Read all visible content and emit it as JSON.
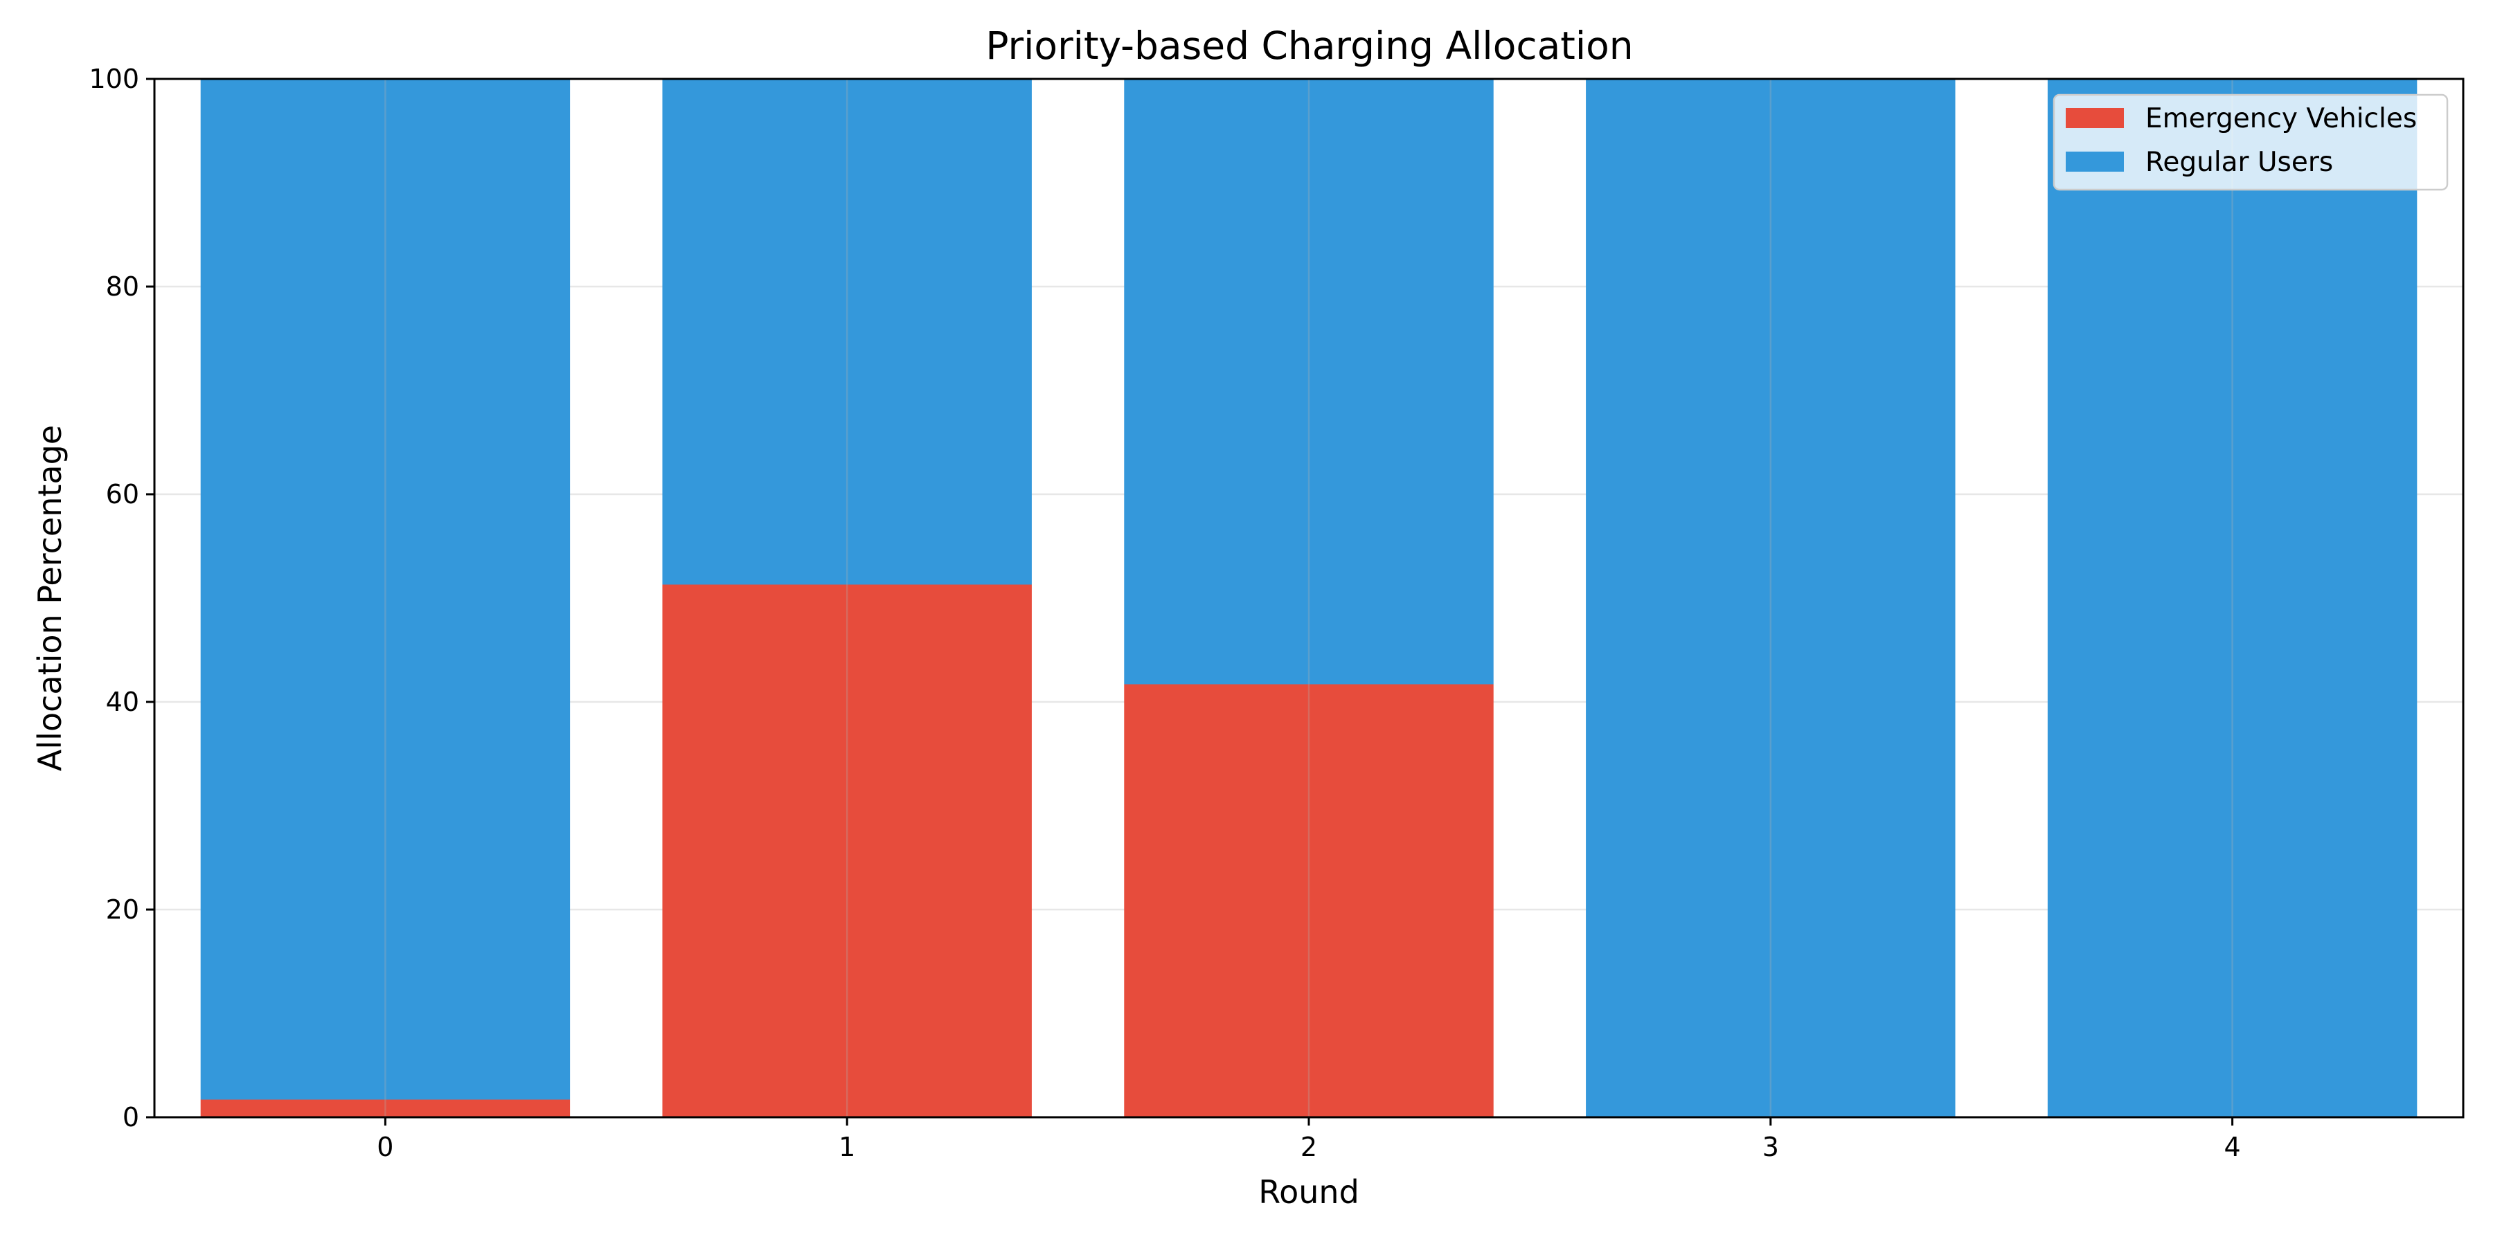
{
  "chart_data": {
    "type": "bar",
    "stacked": true,
    "title": "Priority-based Charging Allocation",
    "xlabel": "Round",
    "ylabel": "Allocation Percentage",
    "categories": [
      "0",
      "1",
      "2",
      "3",
      "4"
    ],
    "ylim": [
      0,
      100
    ],
    "yticks": [
      "0",
      "20",
      "40",
      "60",
      "80",
      "100"
    ],
    "grid": true,
    "legend_position": "top-right",
    "series": [
      {
        "name": "Emergency Vehicles",
        "color": "#e74c3c",
        "values": [
          1.7,
          51.3,
          41.7,
          0,
          0
        ]
      },
      {
        "name": "Regular Users",
        "color": "#3498db",
        "values": [
          98.3,
          48.7,
          58.3,
          100,
          100
        ]
      }
    ]
  }
}
